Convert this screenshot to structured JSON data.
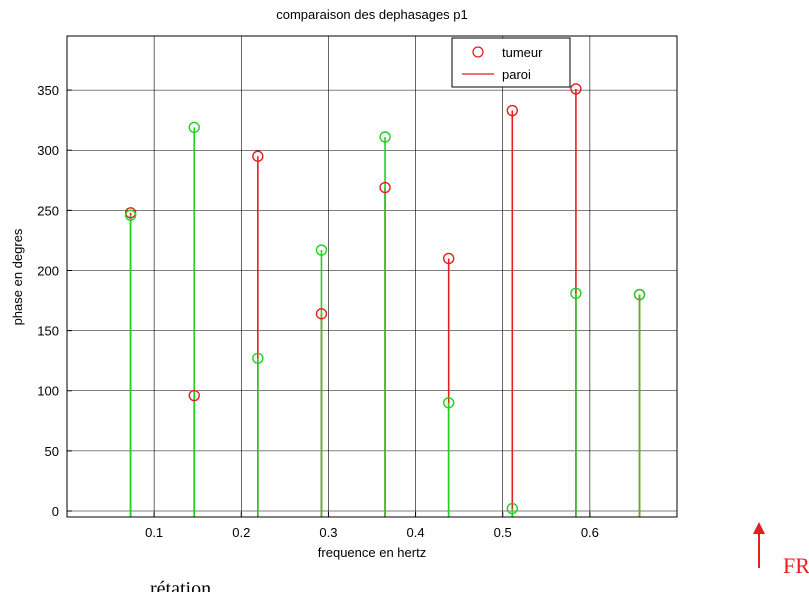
{
  "chart_data": {
    "type": "stem",
    "title": "comparaison des dephasages p1",
    "xlabel": "frequence en hertz",
    "ylabel": "phase en degres",
    "xlim": [
      0.0,
      0.7
    ],
    "ylim": [
      -5,
      395
    ],
    "xticks": [
      "0.1",
      "0.2",
      "0.3",
      "0.4",
      "0.5",
      "0.6"
    ],
    "yticks": [
      "0",
      "50",
      "100",
      "150",
      "200",
      "250",
      "300",
      "350"
    ],
    "grid": true,
    "legend_position": "top-right",
    "legend": [
      {
        "label": "tumeur",
        "marker": "circle"
      },
      {
        "label": "paroi",
        "marker": "line"
      }
    ],
    "series": [
      {
        "name": "tumeur",
        "color": "#e41f1f",
        "x": [
          0.073,
          0.146,
          0.219,
          0.292,
          0.365,
          0.438,
          0.511,
          0.584,
          0.657
        ],
        "y": [
          248,
          96,
          295,
          164,
          269,
          210,
          333,
          351,
          180
        ]
      },
      {
        "name": "paroi",
        "color": "#22d022",
        "x": [
          0.073,
          0.146,
          0.219,
          0.292,
          0.365,
          0.438,
          0.511,
          0.584,
          0.657
        ],
        "y": [
          246,
          319,
          127,
          217,
          311,
          90,
          2,
          181,
          180
        ]
      }
    ]
  },
  "annotation": {
    "fr_label": "FR",
    "bottom_text": "rétation"
  }
}
